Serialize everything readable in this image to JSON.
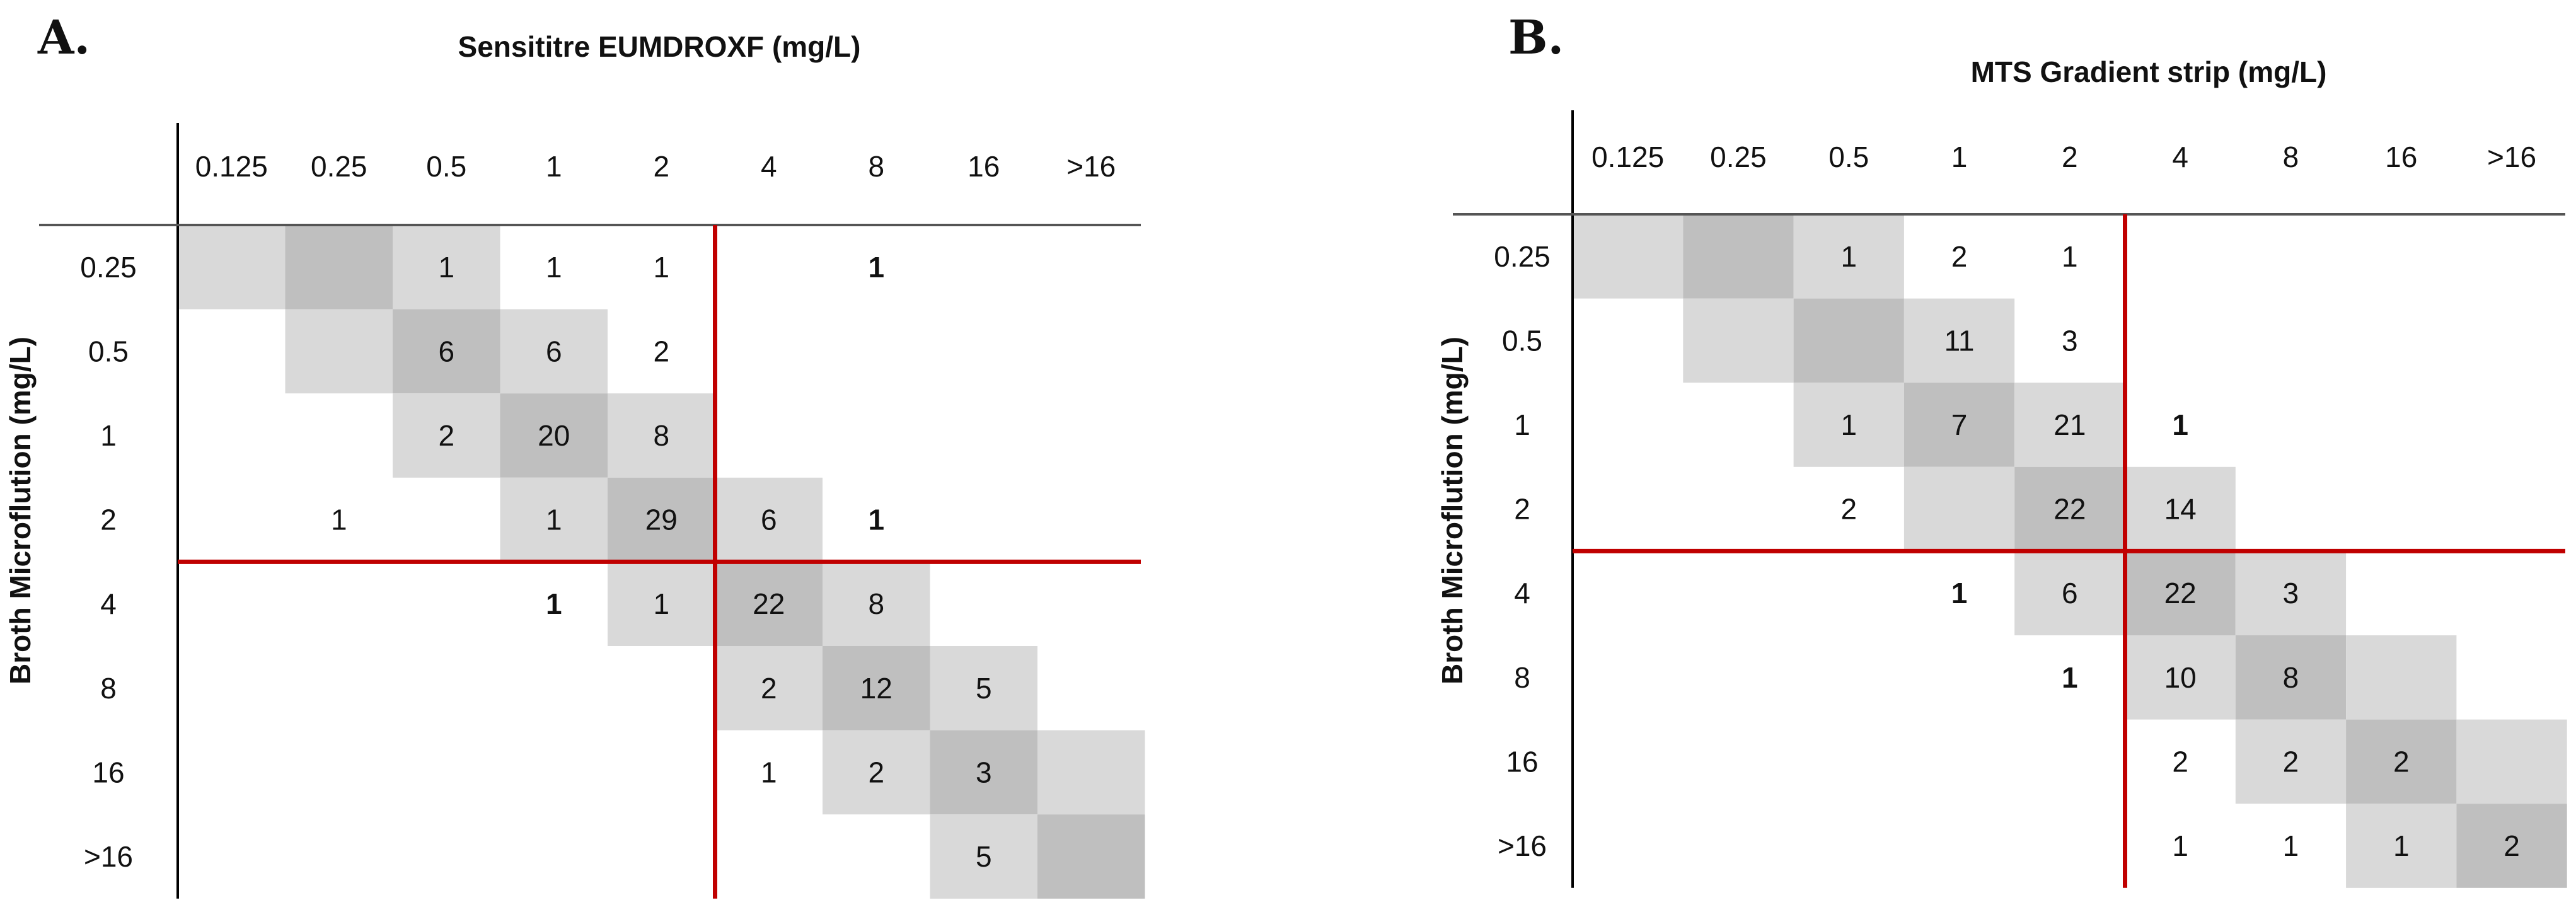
{
  "colors": {
    "cell_light": "#d9d9d9",
    "cell_dark": "#bfbfbf",
    "breakpoint_line": "#c00000",
    "axis_line": "#000000",
    "header_rule": "#555555"
  },
  "chart_data": [
    {
      "type": "table",
      "panel_label": "A.",
      "title": "Sensititre EUMDROXF (mg/L)",
      "ylabel": "Broth Microflution (mg/L)",
      "columns": [
        "0.125",
        "0.25",
        "0.5",
        "1",
        "2",
        "4",
        "8",
        "16",
        ">16"
      ],
      "rows": [
        "0.25",
        "0.5",
        "1",
        "2",
        "4",
        "8",
        "16",
        ">16"
      ],
      "breakpoint": {
        "after_column_index": 4,
        "after_row_index": 3
      },
      "shading": [
        [
          1,
          2,
          1,
          0,
          0,
          0,
          0,
          0,
          0
        ],
        [
          0,
          1,
          2,
          1,
          0,
          0,
          0,
          0,
          0
        ],
        [
          0,
          0,
          1,
          2,
          1,
          0,
          0,
          0,
          0
        ],
        [
          0,
          0,
          0,
          1,
          2,
          1,
          0,
          0,
          0
        ],
        [
          0,
          0,
          0,
          0,
          1,
          2,
          1,
          0,
          0
        ],
        [
          0,
          0,
          0,
          0,
          0,
          1,
          2,
          1,
          0
        ],
        [
          0,
          0,
          0,
          0,
          0,
          0,
          1,
          2,
          1
        ],
        [
          0,
          0,
          0,
          0,
          0,
          0,
          0,
          1,
          2
        ]
      ],
      "counts": [
        [
          "",
          "",
          "1",
          "1",
          "1",
          "",
          "1",
          "",
          ""
        ],
        [
          "",
          "",
          "6",
          "6",
          "2",
          "",
          "",
          "",
          ""
        ],
        [
          "",
          "",
          "2",
          "20",
          "8",
          "",
          "",
          "",
          ""
        ],
        [
          "",
          "1",
          "",
          "1",
          "29",
          "6",
          "1",
          "",
          ""
        ],
        [
          "",
          "",
          "",
          "1",
          "1",
          "22",
          "8",
          "",
          ""
        ],
        [
          "",
          "",
          "",
          "",
          "",
          "2",
          "12",
          "5",
          ""
        ],
        [
          "",
          "",
          "",
          "",
          "",
          "1",
          "2",
          "3",
          ""
        ],
        [
          "",
          "",
          "",
          "",
          "",
          "",
          "",
          "5",
          ""
        ]
      ],
      "bold_cells": [
        [
          0,
          6
        ],
        [
          3,
          6
        ],
        [
          4,
          3
        ]
      ]
    },
    {
      "type": "table",
      "panel_label": "B.",
      "title": "MTS Gradient strip (mg/L)",
      "ylabel": "Broth Microflution (mg/L)",
      "columns": [
        "0.125",
        "0.25",
        "0.5",
        "1",
        "2",
        "4",
        "8",
        "16",
        ">16"
      ],
      "rows": [
        "0.25",
        "0.5",
        "1",
        "2",
        "4",
        "8",
        "16",
        ">16"
      ],
      "breakpoint": {
        "after_column_index": 4,
        "after_row_index": 3
      },
      "shading": [
        [
          1,
          2,
          1,
          0,
          0,
          0,
          0,
          0,
          0
        ],
        [
          0,
          1,
          2,
          1,
          0,
          0,
          0,
          0,
          0
        ],
        [
          0,
          0,
          1,
          2,
          1,
          0,
          0,
          0,
          0
        ],
        [
          0,
          0,
          0,
          1,
          2,
          1,
          0,
          0,
          0
        ],
        [
          0,
          0,
          0,
          0,
          1,
          2,
          1,
          0,
          0
        ],
        [
          0,
          0,
          0,
          0,
          0,
          1,
          2,
          1,
          0
        ],
        [
          0,
          0,
          0,
          0,
          0,
          0,
          1,
          2,
          1
        ],
        [
          0,
          0,
          0,
          0,
          0,
          0,
          0,
          1,
          2
        ]
      ],
      "counts": [
        [
          "",
          "",
          "1",
          "2",
          "1",
          "",
          "",
          "",
          ""
        ],
        [
          "",
          "",
          "",
          "11",
          "3",
          "",
          "",
          "",
          ""
        ],
        [
          "",
          "",
          "1",
          "7",
          "21",
          "1",
          "",
          "",
          ""
        ],
        [
          "",
          "",
          "2",
          "",
          "22",
          "14",
          "",
          "",
          ""
        ],
        [
          "",
          "",
          "",
          "1",
          "6",
          "22",
          "3",
          "",
          ""
        ],
        [
          "",
          "",
          "",
          "",
          "1",
          "10",
          "8",
          "",
          ""
        ],
        [
          "",
          "",
          "",
          "",
          "",
          "2",
          "2",
          "2",
          ""
        ],
        [
          "",
          "",
          "",
          "",
          "",
          "1",
          "1",
          "1",
          "2"
        ]
      ],
      "bold_cells": [
        [
          2,
          5
        ],
        [
          4,
          3
        ],
        [
          5,
          4
        ]
      ]
    }
  ]
}
